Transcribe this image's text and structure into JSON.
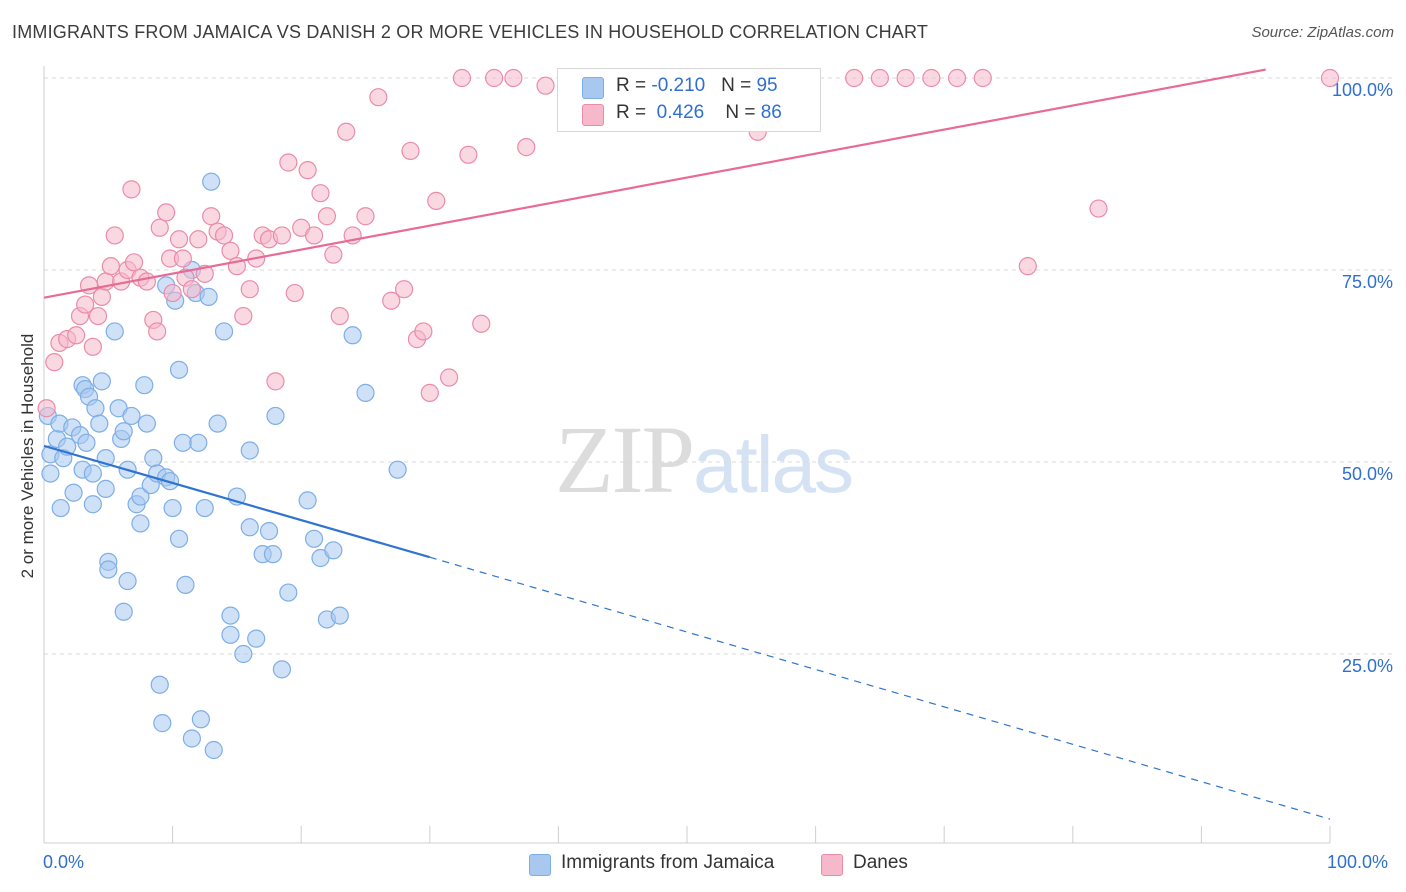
{
  "header": {
    "title": "IMMIGRANTS FROM JAMAICA VS DANISH 2 OR MORE VEHICLES IN HOUSEHOLD CORRELATION CHART",
    "source": "Source: ZipAtlas.com"
  },
  "watermark": {
    "zip": "ZIP",
    "atlas": "atlas"
  },
  "legend": {
    "rows": [
      {
        "r_label": "R = ",
        "r_value": "-0.210",
        "n_label": "N = ",
        "n_value": "95",
        "color": "#a8c8f0"
      },
      {
        "r_label": "R = ",
        "r_value": "0.426",
        "n_label": "N = ",
        "n_value": "86",
        "color": "#f6b8cb"
      }
    ]
  },
  "bottom_legend": {
    "items": [
      {
        "label": "Immigrants from Jamaica",
        "color": "#a8c8f0"
      },
      {
        "label": "Danes",
        "color": "#f6b8cb"
      }
    ]
  },
  "chart_data": {
    "type": "scatter",
    "title": "IMMIGRANTS FROM JAMAICA VS DANISH 2 OR MORE VEHICLES IN HOUSEHOLD CORRELATION CHART",
    "xlabel": "",
    "ylabel": "2 or more Vehicles in Household",
    "xlim": [
      0,
      100
    ],
    "ylim": [
      0,
      105
    ],
    "x_tick_labels": [
      "0.0%",
      "100.0%"
    ],
    "y_ticks": [
      {
        "value": 25,
        "label": "25.0%"
      },
      {
        "value": 50,
        "label": "50.0%"
      },
      {
        "value": 75,
        "label": "75.0%"
      },
      {
        "value": 100,
        "label": "100.0%"
      }
    ],
    "grid": true,
    "legend_position": "top-center",
    "series": [
      {
        "name": "Immigrants from Jamaica",
        "color": "#7eaee6",
        "fill": "#a8c8f0",
        "line_color": "#2f74d0",
        "trend": {
          "x0": 0,
          "y0": 52.1,
          "x1": 30,
          "y1": 37.6,
          "dash_to_x": 100,
          "dash_to_y": 3.5
        },
        "points": [
          [
            0.3,
            56.0
          ],
          [
            0.5,
            51.0
          ],
          [
            0.5,
            48.5
          ],
          [
            1.0,
            53.0
          ],
          [
            1.2,
            55.0
          ],
          [
            1.3,
            44.0
          ],
          [
            1.5,
            50.5
          ],
          [
            1.8,
            52.0
          ],
          [
            2.2,
            54.5
          ],
          [
            2.3,
            46.0
          ],
          [
            2.8,
            53.5
          ],
          [
            3.0,
            49.0
          ],
          [
            3.0,
            60.0
          ],
          [
            3.2,
            59.5
          ],
          [
            3.3,
            52.5
          ],
          [
            3.5,
            58.5
          ],
          [
            3.8,
            48.5
          ],
          [
            3.8,
            44.5
          ],
          [
            4.0,
            57.0
          ],
          [
            4.3,
            55.0
          ],
          [
            4.5,
            60.5
          ],
          [
            4.8,
            46.5
          ],
          [
            4.8,
            50.5
          ],
          [
            5.0,
            37.0
          ],
          [
            5.0,
            36.0
          ],
          [
            5.5,
            67.0
          ],
          [
            5.8,
            57.0
          ],
          [
            6.0,
            53.0
          ],
          [
            6.2,
            30.5
          ],
          [
            6.2,
            54.0
          ],
          [
            6.5,
            49.0
          ],
          [
            6.5,
            34.5
          ],
          [
            6.8,
            56.0
          ],
          [
            7.2,
            44.5
          ],
          [
            7.5,
            42.0
          ],
          [
            7.5,
            45.5
          ],
          [
            7.8,
            60.0
          ],
          [
            8.0,
            55.0
          ],
          [
            8.3,
            47.0
          ],
          [
            8.5,
            50.5
          ],
          [
            8.8,
            48.5
          ],
          [
            9.0,
            21.0
          ],
          [
            9.2,
            16.0
          ],
          [
            9.5,
            48.0
          ],
          [
            9.5,
            73.0
          ],
          [
            9.8,
            47.5
          ],
          [
            10.0,
            44.0
          ],
          [
            10.2,
            71.0
          ],
          [
            10.5,
            40.0
          ],
          [
            10.5,
            62.0
          ],
          [
            10.8,
            52.5
          ],
          [
            11.0,
            34.0
          ],
          [
            11.5,
            14.0
          ],
          [
            11.5,
            75.0
          ],
          [
            11.8,
            72.0
          ],
          [
            12.0,
            52.5
          ],
          [
            12.2,
            16.5
          ],
          [
            12.5,
            44.0
          ],
          [
            12.8,
            71.5
          ],
          [
            13.0,
            86.5
          ],
          [
            13.2,
            12.5
          ],
          [
            13.5,
            55.0
          ],
          [
            14.0,
            67.0
          ],
          [
            14.5,
            27.5
          ],
          [
            14.5,
            30.0
          ],
          [
            15.0,
            45.5
          ],
          [
            15.5,
            25.0
          ],
          [
            16.0,
            41.5
          ],
          [
            16.0,
            51.5
          ],
          [
            16.5,
            27.0
          ],
          [
            17.0,
            38.0
          ],
          [
            17.5,
            41.0
          ],
          [
            17.8,
            38.0
          ],
          [
            18.0,
            56.0
          ],
          [
            18.5,
            23.0
          ],
          [
            19.0,
            33.0
          ],
          [
            20.5,
            45.0
          ],
          [
            21.0,
            40.0
          ],
          [
            21.5,
            37.5
          ],
          [
            22.0,
            29.5
          ],
          [
            22.5,
            38.5
          ],
          [
            23.0,
            30.0
          ],
          [
            24.0,
            66.5
          ],
          [
            25.0,
            59.0
          ],
          [
            27.5,
            49.0
          ]
        ]
      },
      {
        "name": "Danes",
        "color": "#ea8bac",
        "fill": "#f6b8cb",
        "line_color": "#e86b96",
        "trend": {
          "x0": 0,
          "y0": 71.4,
          "x1": 95,
          "y1": 101.1
        },
        "points": [
          [
            0.2,
            57.0
          ],
          [
            0.8,
            63.0
          ],
          [
            1.2,
            65.5
          ],
          [
            1.8,
            66.0
          ],
          [
            2.5,
            66.5
          ],
          [
            2.8,
            69.0
          ],
          [
            3.2,
            70.5
          ],
          [
            3.5,
            73.0
          ],
          [
            3.8,
            65.0
          ],
          [
            4.2,
            69.0
          ],
          [
            4.5,
            71.5
          ],
          [
            4.8,
            73.5
          ],
          [
            5.2,
            75.5
          ],
          [
            5.5,
            79.5
          ],
          [
            6.0,
            73.5
          ],
          [
            6.5,
            75.0
          ],
          [
            6.8,
            85.5
          ],
          [
            7.0,
            76.0
          ],
          [
            7.5,
            74.0
          ],
          [
            8.0,
            73.5
          ],
          [
            8.5,
            68.5
          ],
          [
            8.8,
            67.0
          ],
          [
            9.0,
            80.5
          ],
          [
            9.5,
            82.5
          ],
          [
            9.8,
            76.5
          ],
          [
            10.0,
            72.0
          ],
          [
            10.5,
            79.0
          ],
          [
            10.8,
            76.5
          ],
          [
            11.0,
            74.0
          ],
          [
            11.5,
            72.5
          ],
          [
            12.0,
            79.0
          ],
          [
            12.5,
            74.5
          ],
          [
            13.0,
            82.0
          ],
          [
            13.5,
            80.0
          ],
          [
            14.0,
            79.5
          ],
          [
            14.5,
            77.5
          ],
          [
            15.0,
            75.5
          ],
          [
            15.5,
            69.0
          ],
          [
            16.0,
            72.5
          ],
          [
            16.5,
            76.5
          ],
          [
            17.0,
            79.5
          ],
          [
            17.5,
            79.0
          ],
          [
            18.0,
            60.5
          ],
          [
            18.5,
            79.5
          ],
          [
            19.0,
            89.0
          ],
          [
            19.5,
            72.0
          ],
          [
            20.0,
            80.5
          ],
          [
            20.5,
            88.0
          ],
          [
            21.0,
            79.5
          ],
          [
            21.5,
            85.0
          ],
          [
            22.0,
            82.0
          ],
          [
            22.5,
            77.0
          ],
          [
            23.0,
            69.0
          ],
          [
            23.5,
            93.0
          ],
          [
            24.0,
            79.5
          ],
          [
            25.0,
            82.0
          ],
          [
            26.0,
            97.5
          ],
          [
            27.0,
            71.0
          ],
          [
            28.0,
            72.5
          ],
          [
            28.5,
            90.5
          ],
          [
            29.0,
            66.0
          ],
          [
            29.5,
            67.0
          ],
          [
            30.0,
            59.0
          ],
          [
            30.5,
            84.0
          ],
          [
            31.5,
            61.0
          ],
          [
            32.5,
            100.0
          ],
          [
            33.0,
            90.0
          ],
          [
            34.0,
            68.0
          ],
          [
            35.0,
            100.0
          ],
          [
            36.5,
            100.0
          ],
          [
            37.5,
            91.0
          ],
          [
            39.0,
            99.0
          ],
          [
            41.0,
            100.0
          ],
          [
            44.0,
            100.0
          ],
          [
            48.0,
            100.0
          ],
          [
            49.0,
            100.0
          ],
          [
            50.5,
            100.0
          ],
          [
            54.0,
            100.0
          ],
          [
            55.5,
            93.0
          ],
          [
            63.0,
            100.0
          ],
          [
            65.0,
            100.0
          ],
          [
            67.0,
            100.0
          ],
          [
            69.0,
            100.0
          ],
          [
            71.0,
            100.0
          ],
          [
            73.0,
            100.0
          ],
          [
            76.5,
            75.5
          ],
          [
            82.0,
            83.0
          ],
          [
            100.0,
            100.0
          ]
        ]
      }
    ]
  }
}
